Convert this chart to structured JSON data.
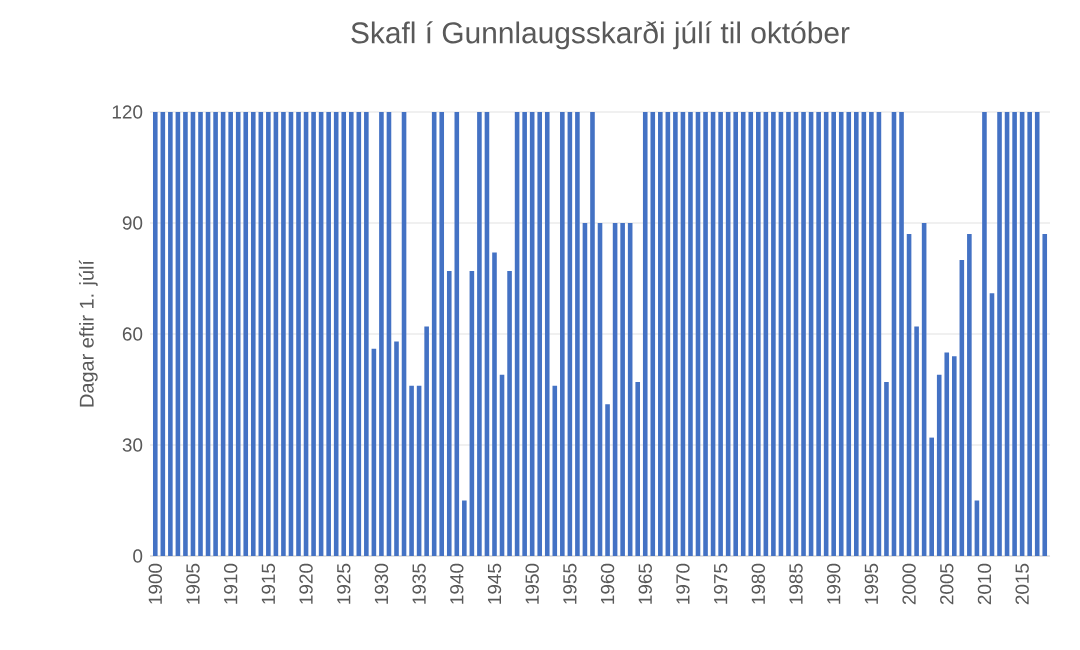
{
  "chart_data": {
    "type": "bar",
    "title": "Skafl í Gunnlaugsskarði júlí til október",
    "ylabel": "Dagar eftir 1. júlí",
    "categories": [
      "1900",
      null,
      null,
      null,
      null,
      "1905",
      null,
      null,
      null,
      null,
      "1910",
      null,
      null,
      null,
      null,
      "1915",
      null,
      null,
      null,
      null,
      "1920",
      null,
      null,
      null,
      null,
      "1925",
      null,
      null,
      null,
      null,
      "1930",
      null,
      null,
      null,
      null,
      "1935",
      null,
      null,
      null,
      null,
      "1940",
      null,
      null,
      null,
      null,
      "1945",
      null,
      null,
      null,
      null,
      "1950",
      null,
      null,
      null,
      null,
      "1955",
      null,
      null,
      null,
      null,
      "1960",
      null,
      null,
      null,
      null,
      "1965",
      null,
      null,
      null,
      null,
      "1970",
      null,
      null,
      null,
      null,
      "1975",
      null,
      null,
      null,
      null,
      "1980",
      null,
      null,
      null,
      null,
      "1985",
      null,
      null,
      null,
      null,
      "1990",
      null,
      null,
      null,
      null,
      "1995",
      null,
      null,
      null,
      null,
      "2000",
      null,
      null,
      null,
      null,
      "2005",
      null,
      null,
      null,
      null,
      "2010",
      null,
      null,
      null,
      null,
      "2015",
      null,
      null,
      null
    ],
    "values": [
      120,
      120,
      120,
      120,
      120,
      120,
      120,
      120,
      120,
      120,
      120,
      120,
      120,
      120,
      120,
      120,
      120,
      120,
      120,
      120,
      120,
      120,
      120,
      120,
      120,
      120,
      120,
      120,
      120,
      56,
      120,
      120,
      58,
      120,
      46,
      46,
      62,
      120,
      120,
      77,
      120,
      15,
      77,
      120,
      120,
      82,
      49,
      77,
      120,
      120,
      120,
      120,
      120,
      46,
      120,
      120,
      120,
      90,
      120,
      90,
      41,
      90,
      90,
      90,
      47,
      120,
      120,
      120,
      120,
      120,
      120,
      120,
      120,
      120,
      120,
      120,
      120,
      120,
      120,
      120,
      120,
      120,
      120,
      120,
      120,
      120,
      120,
      120,
      120,
      120,
      120,
      120,
      120,
      120,
      120,
      120,
      120,
      47,
      120,
      120,
      87,
      62,
      90,
      32,
      49,
      55,
      54,
      80,
      87,
      15,
      120,
      71,
      120,
      120,
      120,
      120,
      120,
      120,
      87
    ],
    "color": "#4472c4",
    "ylim": [
      0,
      120
    ],
    "yticks": [
      0,
      30,
      60,
      90,
      120
    ],
    "grid": "y"
  }
}
